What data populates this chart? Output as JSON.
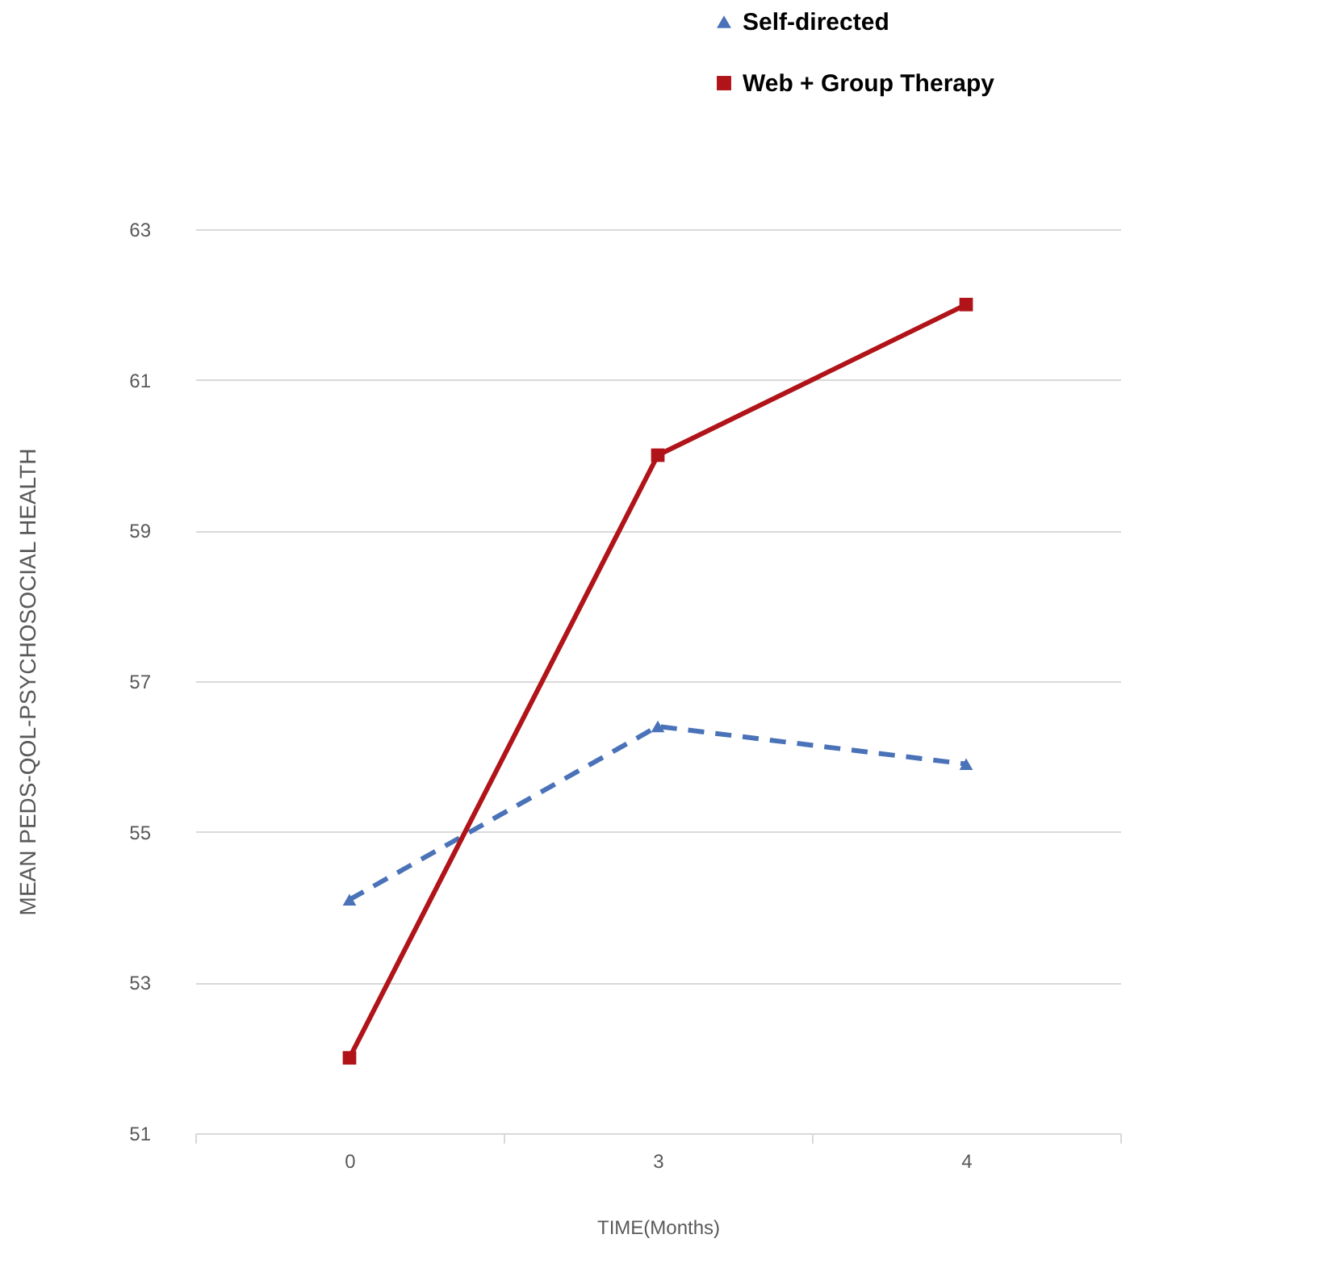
{
  "chart_data": {
    "type": "line",
    "xlabel": "TIME(Months)",
    "ylabel": "MEAN PEDS-QOL-PSYCHOSOCIAL HEALTH",
    "categories": [
      "0",
      "3",
      "4"
    ],
    "series": [
      {
        "name": "Self-directed",
        "color": "#4a72b8",
        "values": [
          54.1,
          56.4,
          55.9
        ],
        "marker": "triangle",
        "line_style": "dashed"
      },
      {
        "name": "Web + Group Therapy",
        "color": "#b01419",
        "values": [
          52.0,
          60.0,
          62.0
        ],
        "marker": "square",
        "line_style": "solid"
      }
    ],
    "ylim": [
      51,
      63
    ],
    "yticks": [
      51,
      53,
      55,
      57,
      59,
      61,
      63
    ],
    "grid": "y",
    "legend": "top right"
  }
}
